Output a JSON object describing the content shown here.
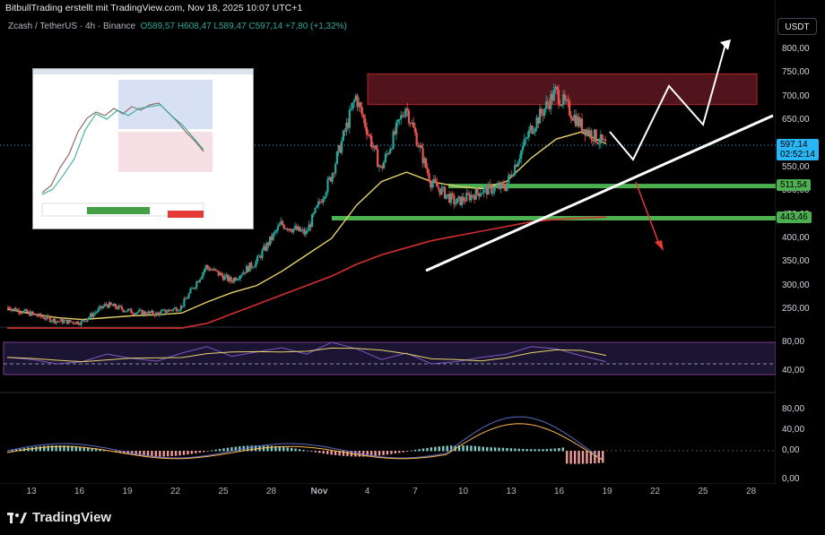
{
  "header": {
    "attribution": "BitbullTrading erstellt mit TradingView.com, Nov 18, 2025 10:07 UTC+1",
    "symbol": "Zcash / TetherUS · 4h · Binance",
    "ohlc_o": "O589,57",
    "ohlc_h": "H608,47",
    "ohlc_l": "L589,47",
    "ohlc_c": "C597,14",
    "change": "+7,80 (+1,32%)"
  },
  "currency_button": "USDT",
  "price_axis": [
    "800,00",
    "750,00",
    "700,00",
    "650,00",
    "600,00",
    "550,00",
    "500,00",
    "450,00",
    "400,00",
    "350,00",
    "300,00",
    "250,00"
  ],
  "price_tags": {
    "last": "597,14",
    "countdown": "02:52:14",
    "level1": "511,54",
    "level2": "443,46"
  },
  "rsi_axis": [
    "80,00",
    "40,00"
  ],
  "macd_axis": [
    "80,00",
    "40,00",
    "0,00",
    "0,00"
  ],
  "time_axis": [
    "13",
    "16",
    "19",
    "22",
    "25",
    "28",
    "Nov",
    "4",
    "7",
    "10",
    "13",
    "16",
    "19",
    "22",
    "25",
    "28"
  ],
  "footer_brand": "TradingView",
  "colors": {
    "up": "#26a69a",
    "down": "#ef5350",
    "ma_fast": "#e8d36a",
    "ma_slow": "#d32f2f",
    "support": "#4caf50",
    "resistance_fill": "#5a1620",
    "last_price": "#29b6f6"
  },
  "chart_data": {
    "type": "candlestick",
    "title": "Zcash / TetherUS · 4h · Binance",
    "ylim": [
      210,
      830
    ],
    "price_series": {
      "name": "ZEC/USDT",
      "x": [
        "Oct 12",
        "Oct 14",
        "Oct 16",
        "Oct 18",
        "Oct 20",
        "Oct 22",
        "Oct 24",
        "Oct 26",
        "Oct 28",
        "Oct 30",
        "Nov 1",
        "Nov 3",
        "Nov 5",
        "Nov 7",
        "Nov 8",
        "Nov 9",
        "Nov 10",
        "Nov 11",
        "Nov 12",
        "Nov 13",
        "Nov 14",
        "Nov 15",
        "Nov 16",
        "Nov 17",
        "Nov 18"
      ],
      "values": [
        255,
        240,
        225,
        222,
        260,
        245,
        240,
        255,
        340,
        310,
        350,
        430,
        410,
        530,
        700,
        545,
        680,
        520,
        475,
        500,
        510,
        630,
        710,
        640,
        597
      ]
    },
    "ma_fast": [
      250,
      240,
      232,
      228,
      232,
      236,
      238,
      242,
      265,
      285,
      300,
      330,
      365,
      400,
      470,
      520,
      540,
      520,
      510,
      505,
      520,
      570,
      610,
      625,
      600
    ],
    "ma_slow": [
      160,
      165,
      170,
      175,
      180,
      190,
      200,
      210,
      220,
      240,
      260,
      280,
      300,
      320,
      345,
      365,
      380,
      395,
      405,
      415,
      425,
      435,
      440,
      443,
      445
    ],
    "levels": [
      {
        "price": 511.54,
        "color": "#4caf50"
      },
      {
        "price": 443.46,
        "color": "#4caf50"
      }
    ],
    "resistance_zone": [
      683,
      748
    ],
    "rsi": {
      "ylim": [
        20,
        100
      ],
      "bands": [
        80,
        40
      ],
      "series": [
        52,
        48,
        40,
        44,
        58,
        50,
        45,
        60,
        72,
        54,
        62,
        70,
        58,
        80,
        68,
        48,
        60,
        40,
        44,
        52,
        58,
        72,
        68,
        55,
        44
      ]
    },
    "macd": {
      "ylim": [
        -20,
        100
      ]
    }
  }
}
